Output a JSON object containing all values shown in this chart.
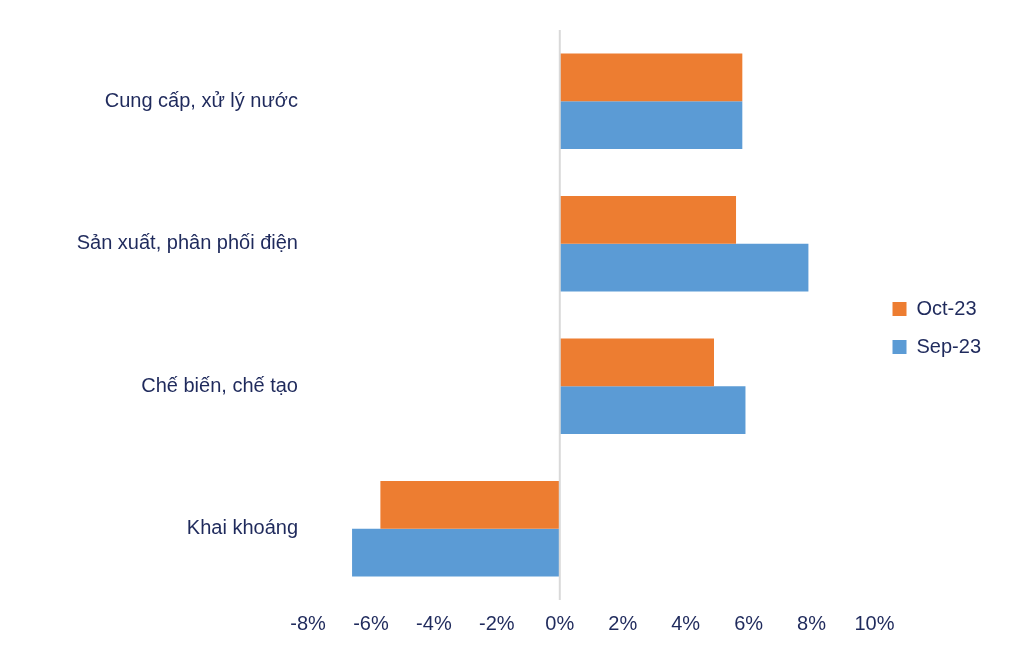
{
  "chart_data": {
    "type": "bar",
    "orientation": "horizontal",
    "categories": [
      "Cung cấp, xử lý nước",
      "Sản xuất, phân phối điện",
      "Chế biến, chế tạo",
      "Khai khoáng"
    ],
    "series": [
      {
        "name": "Oct-23",
        "color": "#ed7d31",
        "values": [
          5.8,
          5.6,
          4.9,
          -5.7
        ]
      },
      {
        "name": "Sep-23",
        "color": "#5b9bd5",
        "values": [
          5.8,
          7.9,
          5.9,
          -6.6
        ]
      }
    ],
    "xlim": [
      -8,
      10
    ],
    "xticks": [
      {
        "value": -8,
        "label": "-8%"
      },
      {
        "value": -6,
        "label": "-6%"
      },
      {
        "value": -4,
        "label": "-4%"
      },
      {
        "value": -2,
        "label": "-2%"
      },
      {
        "value": 0,
        "label": "0%"
      },
      {
        "value": 2,
        "label": "2%"
      },
      {
        "value": 4,
        "label": "4%"
      },
      {
        "value": 6,
        "label": "6%"
      },
      {
        "value": 8,
        "label": "8%"
      },
      {
        "value": 10,
        "label": "10%"
      }
    ],
    "ref_lines": [
      {
        "axis": "x",
        "value": 0,
        "color": "#d9d9d9"
      }
    ],
    "grid": false,
    "legend": "right"
  }
}
